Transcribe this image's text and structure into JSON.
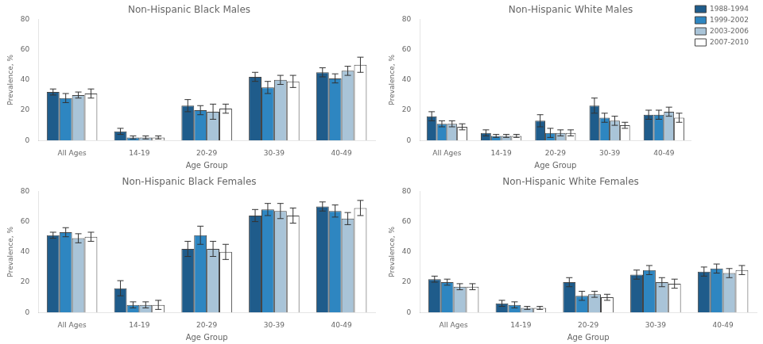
{
  "chart_data": [
    {
      "type": "bar",
      "title": "Non-Hispanic Black Males",
      "categories": [
        "All Ages",
        "14-19",
        "20-29",
        "30-39",
        "40-49"
      ],
      "xlabel": "Age Group",
      "ylabel": "Prevalence, %",
      "ylim": [
        0,
        80
      ],
      "yticks": [
        0,
        20,
        40,
        60,
        80
      ],
      "grid": false,
      "series": [
        {
          "color": "#1f5c8b",
          "values": [
            32,
            6,
            23,
            42,
            45
          ],
          "errors": [
            2,
            2,
            4,
            3,
            3
          ]
        },
        {
          "color": "#2e86c1",
          "values": [
            28,
            2,
            20,
            35,
            41
          ],
          "errors": [
            3,
            1,
            3,
            4,
            3
          ]
        },
        {
          "color": "#a9c4d8",
          "values": [
            30,
            2,
            19,
            40,
            46
          ],
          "errors": [
            2,
            1,
            5,
            3,
            3
          ]
        },
        {
          "color": "#ffffff",
          "values": [
            31,
            2,
            21,
            39,
            50
          ],
          "errors": [
            3,
            1,
            3,
            4,
            5
          ]
        }
      ]
    },
    {
      "type": "bar",
      "title": "Non-Hispanic White Males",
      "categories": [
        "All Ages",
        "14-19",
        "20-29",
        "30-39",
        "40-49"
      ],
      "xlabel": "Age Group",
      "ylabel": "Prevalence, %",
      "ylim": [
        0,
        80
      ],
      "yticks": [
        0,
        20,
        40,
        60,
        80
      ],
      "grid": false,
      "legend": "upper right",
      "series": [
        {
          "name": "1988-1994",
          "color": "#1f5c8b",
          "values": [
            16,
            5,
            13,
            23,
            17
          ],
          "errors": [
            3,
            2,
            4,
            5,
            3
          ]
        },
        {
          "name": "1999-2002",
          "color": "#2e86c1",
          "values": [
            11,
            3,
            5,
            15,
            17
          ],
          "errors": [
            2,
            1,
            3,
            3,
            3
          ]
        },
        {
          "name": "2003-2006",
          "color": "#a9c4d8",
          "values": [
            11,
            3,
            5,
            13,
            19
          ],
          "errors": [
            2,
            1,
            2,
            3,
            3
          ]
        },
        {
          "name": "2007-2010",
          "color": "#ffffff",
          "values": [
            9,
            3,
            5,
            10,
            15
          ],
          "errors": [
            2,
            1,
            2,
            2,
            3
          ]
        }
      ]
    },
    {
      "type": "bar",
      "title": "Non-Hispanic Black Females",
      "categories": [
        "All Ages",
        "14-19",
        "20-29",
        "30-39",
        "40-49"
      ],
      "xlabel": "Age Group",
      "ylabel": "Prevalence, %",
      "ylim": [
        0,
        80
      ],
      "yticks": [
        0,
        20,
        40,
        60,
        80
      ],
      "grid": false,
      "series": [
        {
          "color": "#1f5c8b",
          "values": [
            51,
            16,
            42,
            64,
            70
          ],
          "errors": [
            2,
            5,
            5,
            4,
            3
          ]
        },
        {
          "color": "#2e86c1",
          "values": [
            53,
            5,
            51,
            68,
            67
          ],
          "errors": [
            3,
            2,
            6,
            4,
            4
          ]
        },
        {
          "color": "#a9c4d8",
          "values": [
            49,
            5,
            42,
            67,
            62
          ],
          "errors": [
            3,
            2,
            5,
            5,
            4
          ]
        },
        {
          "color": "#ffffff",
          "values": [
            50,
            5,
            40,
            64,
            69
          ],
          "errors": [
            3,
            3,
            5,
            5,
            5
          ]
        }
      ]
    },
    {
      "type": "bar",
      "title": "Non-Hispanic White Females",
      "categories": [
        "All Ages",
        "14-19",
        "20-29",
        "30-39",
        "40-49"
      ],
      "xlabel": "Age Group",
      "ylabel": "Prevalence, %",
      "ylim": [
        0,
        80
      ],
      "yticks": [
        0,
        20,
        40,
        60,
        80
      ],
      "grid": false,
      "series": [
        {
          "color": "#1f5c8b",
          "values": [
            22,
            6,
            20,
            25,
            27
          ],
          "errors": [
            2,
            2,
            3,
            3,
            3
          ]
        },
        {
          "color": "#2e86c1",
          "values": [
            20,
            5,
            11,
            28,
            29
          ],
          "errors": [
            2,
            2,
            3,
            3,
            3
          ]
        },
        {
          "color": "#a9c4d8",
          "values": [
            17,
            3,
            12,
            20,
            26
          ],
          "errors": [
            2,
            1,
            2,
            3,
            3
          ]
        },
        {
          "color": "#ffffff",
          "values": [
            17,
            3,
            10,
            19,
            28
          ],
          "errors": [
            2,
            1,
            2,
            3,
            3
          ]
        }
      ]
    }
  ]
}
